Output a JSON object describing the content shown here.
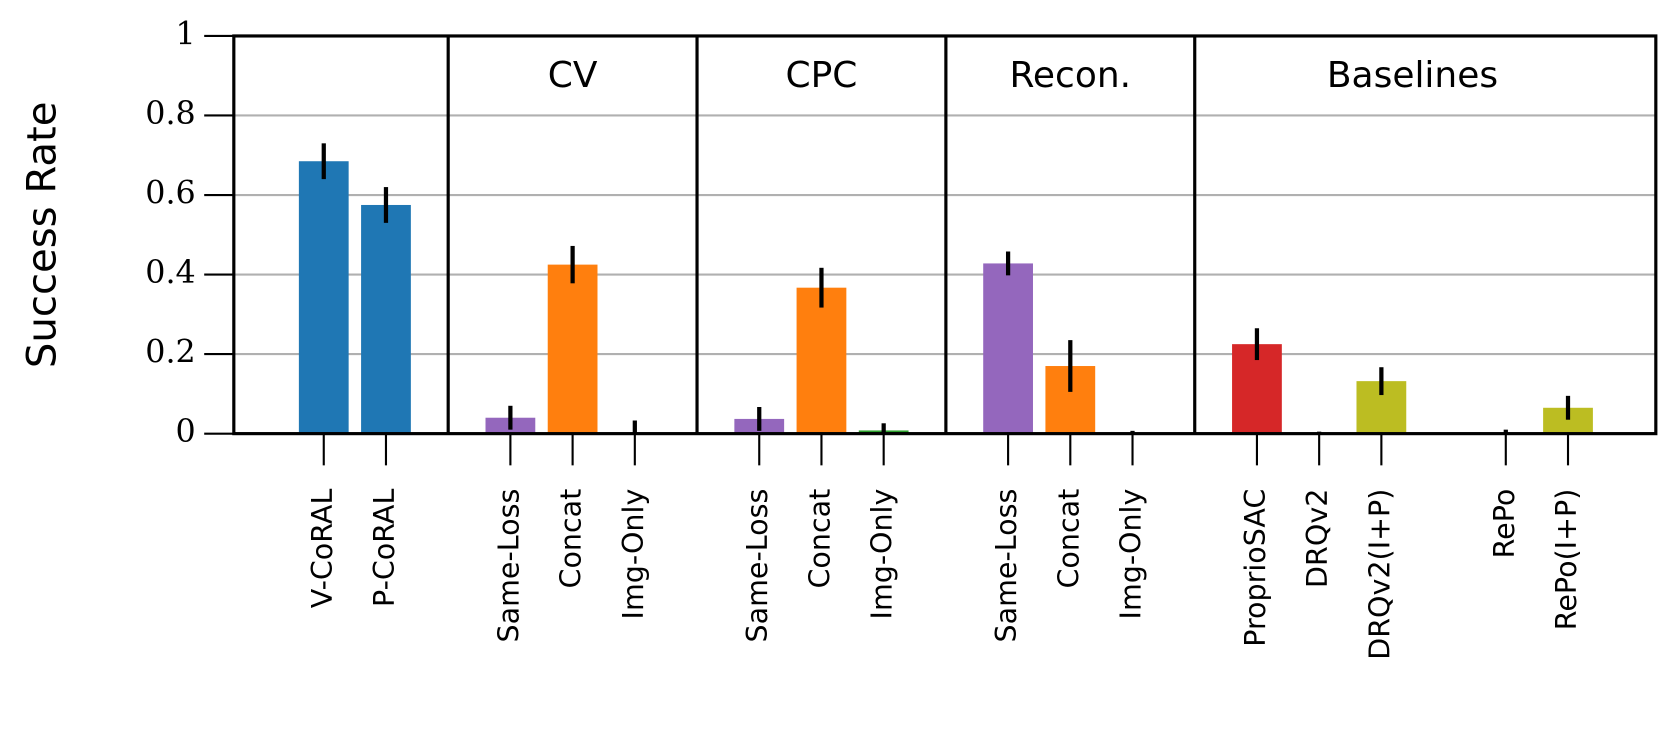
{
  "chart_data": {
    "type": "bar",
    "ylabel": "Success Rate",
    "ylim": [
      0,
      1
    ],
    "yticks": [
      0,
      0.2,
      0.4,
      0.6,
      0.8,
      1
    ],
    "grid": true,
    "groups": [
      {
        "categories": [
          "V-CoRAL",
          "P-CoRAL"
        ],
        "values": [
          0.685,
          0.575
        ],
        "errors": [
          0.045,
          0.045
        ],
        "colors": [
          "#1f77b4",
          "#1f77b4"
        ]
      },
      {
        "name": "CV",
        "categories": [
          "Same-Loss",
          "Concat",
          "Img-Only"
        ],
        "values": [
          0.04,
          0.425,
          0.003
        ],
        "errors": [
          0.03,
          0.047,
          0.03
        ],
        "colors": [
          "#9467bd",
          "#ff7f0e",
          "#2ca02c"
        ]
      },
      {
        "name": "CPC",
        "categories": [
          "Same-Loss",
          "Concat",
          "Img-Only"
        ],
        "values": [
          0.037,
          0.367,
          0.008
        ],
        "errors": [
          0.03,
          0.05,
          0.018
        ],
        "colors": [
          "#9467bd",
          "#ff7f0e",
          "#2ca02c"
        ]
      },
      {
        "name": "Recon.",
        "categories": [
          "Same-Loss",
          "Concat",
          "Img-Only"
        ],
        "values": [
          0.428,
          0.17,
          0.002
        ],
        "errors": [
          0.03,
          0.065,
          0.005
        ],
        "colors": [
          "#9467bd",
          "#ff7f0e",
          "#2ca02c"
        ]
      },
      {
        "name": "Baselines",
        "categories": [
          "ProprioSAC",
          "DRQv2",
          "DRQv2(I+P)",
          null,
          "RePo",
          "RePo(I+P)"
        ],
        "values": [
          0.225,
          0,
          0.132,
          null,
          0.002,
          0.065
        ],
        "errors": [
          0.04,
          0.005,
          0.035,
          null,
          0.008,
          0.03
        ],
        "colors": [
          "#d62728",
          "#7f7f7f",
          "#bcbd22",
          null,
          "#e377c2",
          "#bcbd22"
        ]
      }
    ]
  }
}
